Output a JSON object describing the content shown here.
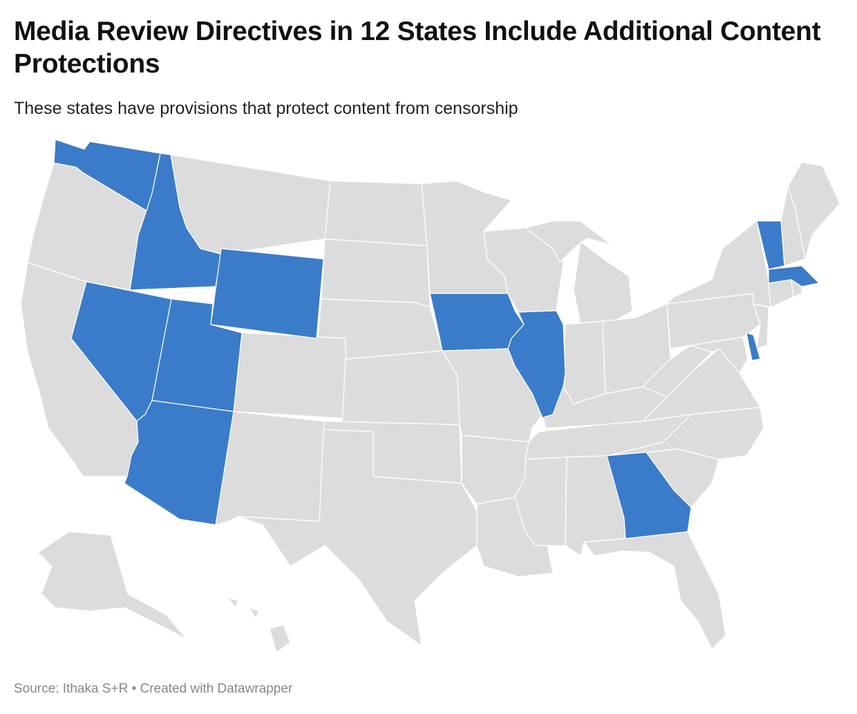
{
  "title": "Media Review Directives in 12 States Include Additional Content Protections",
  "subtitle": "These states have provisions that protect content from censorship",
  "source": "Source: Ithaka S+R • Created with Datawrapper",
  "colors": {
    "highlight": "#3a7cc9",
    "base": "#dcdcdc",
    "border": "#ffffff"
  },
  "highlighted_states": [
    "Washington",
    "Idaho",
    "Nevada",
    "Utah",
    "Arizona",
    "Wyoming",
    "Iowa",
    "Illinois",
    "Georgia",
    "Vermont",
    "Massachusetts",
    "Delaware"
  ]
}
